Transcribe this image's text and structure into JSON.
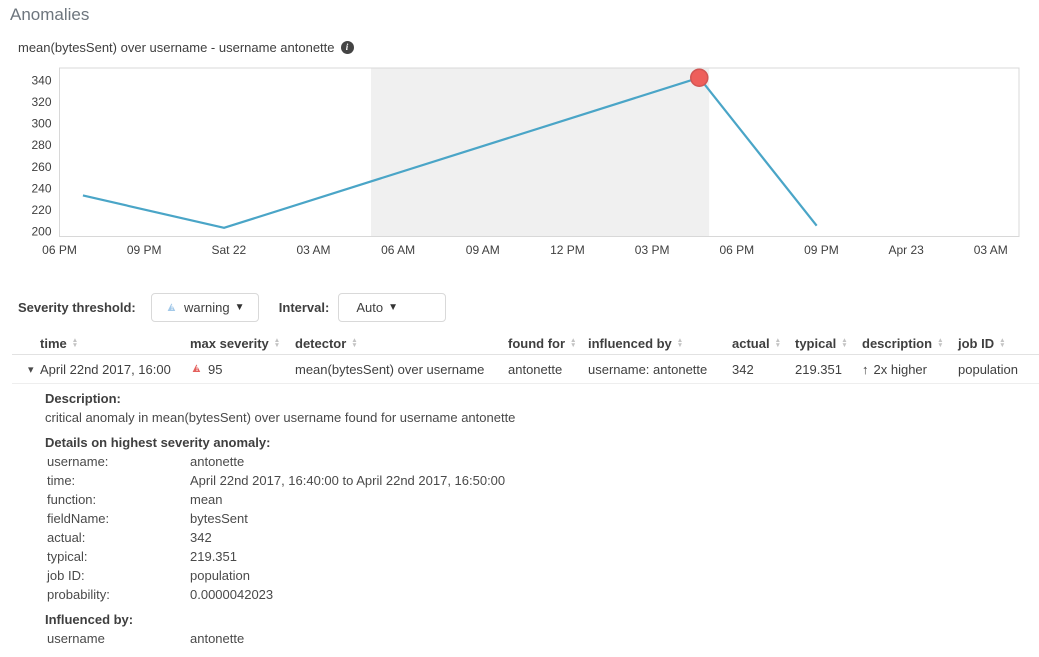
{
  "page": {
    "title": "Anomalies"
  },
  "chart": {
    "title": "mean(bytesSent) over username - username antonette"
  },
  "chart_data": {
    "type": "line",
    "title": "mean(bytesSent) over username - username antonette",
    "x_unit": "hours from first tick (Fri Apr 21, 06 PM)",
    "x": [
      0.83,
      5.83,
      22.67,
      26.83
    ],
    "values": [
      233,
      203,
      342,
      205
    ],
    "xlim": [
      0,
      34
    ],
    "ylim": [
      195,
      351
    ],
    "y_ticks": [
      200,
      220,
      240,
      260,
      280,
      300,
      320,
      340
    ],
    "x_ticks": [
      0,
      3,
      6,
      9,
      12,
      15,
      18,
      21,
      24,
      27,
      30,
      33
    ],
    "x_tick_labels": [
      "06 PM",
      "09 PM",
      "Sat 22",
      "03 AM",
      "06 AM",
      "09 AM",
      "12 PM",
      "03 PM",
      "06 PM",
      "09 PM",
      "Apr 23",
      "03 AM"
    ],
    "line_color": "#4aa5c7",
    "border_color": "#d8d8d8",
    "shaded_band": {
      "from": 11.04,
      "to": 23.02,
      "color": "#f0f0f0"
    },
    "anomaly_marker": {
      "x": 22.67,
      "value": 342,
      "severity": "critical",
      "fill": "#ee5f5b",
      "stroke": "#d25553"
    },
    "legend": "none",
    "grid": "off"
  },
  "controls": {
    "severity_label": "Severity threshold:",
    "severity_value": "warning",
    "interval_label": "Interval:",
    "interval_value": "Auto"
  },
  "colors": {
    "warning_blue": "#a3c9e9",
    "critical_red": "#e4605d",
    "line_teal": "#4aa5c7"
  },
  "table": {
    "headers": [
      "time",
      "max severity",
      "detector",
      "found for",
      "influenced by",
      "actual",
      "typical",
      "description",
      "job ID"
    ],
    "row": {
      "time": "April 22nd 2017, 16:00",
      "max_severity": "95",
      "detector": "mean(bytesSent) over username",
      "found_for": "antonette",
      "influenced_by": "username: antonette",
      "actual": "342",
      "typical": "219.351",
      "description": "2x higher",
      "job_id": "population"
    }
  },
  "details": {
    "description_label": "Description:",
    "description_text": "critical anomaly in mean(bytesSent) over username found for username antonette",
    "details_label": "Details on highest severity anomaly:",
    "rows": [
      {
        "key": "username:",
        "value": "antonette"
      },
      {
        "key": "time:",
        "value": "April 22nd 2017, 16:40:00 to April 22nd 2017, 16:50:00"
      },
      {
        "key": "function:",
        "value": "mean"
      },
      {
        "key": "fieldName:",
        "value": "bytesSent"
      },
      {
        "key": "actual:",
        "value": "342"
      },
      {
        "key": "typical:",
        "value": "219.351"
      },
      {
        "key": "job ID:",
        "value": "population"
      },
      {
        "key": "probability:",
        "value": "0.0000042023"
      }
    ],
    "influenced_label": "Influenced by:",
    "influenced_rows": [
      {
        "key": "username",
        "value": "antonette"
      }
    ]
  }
}
